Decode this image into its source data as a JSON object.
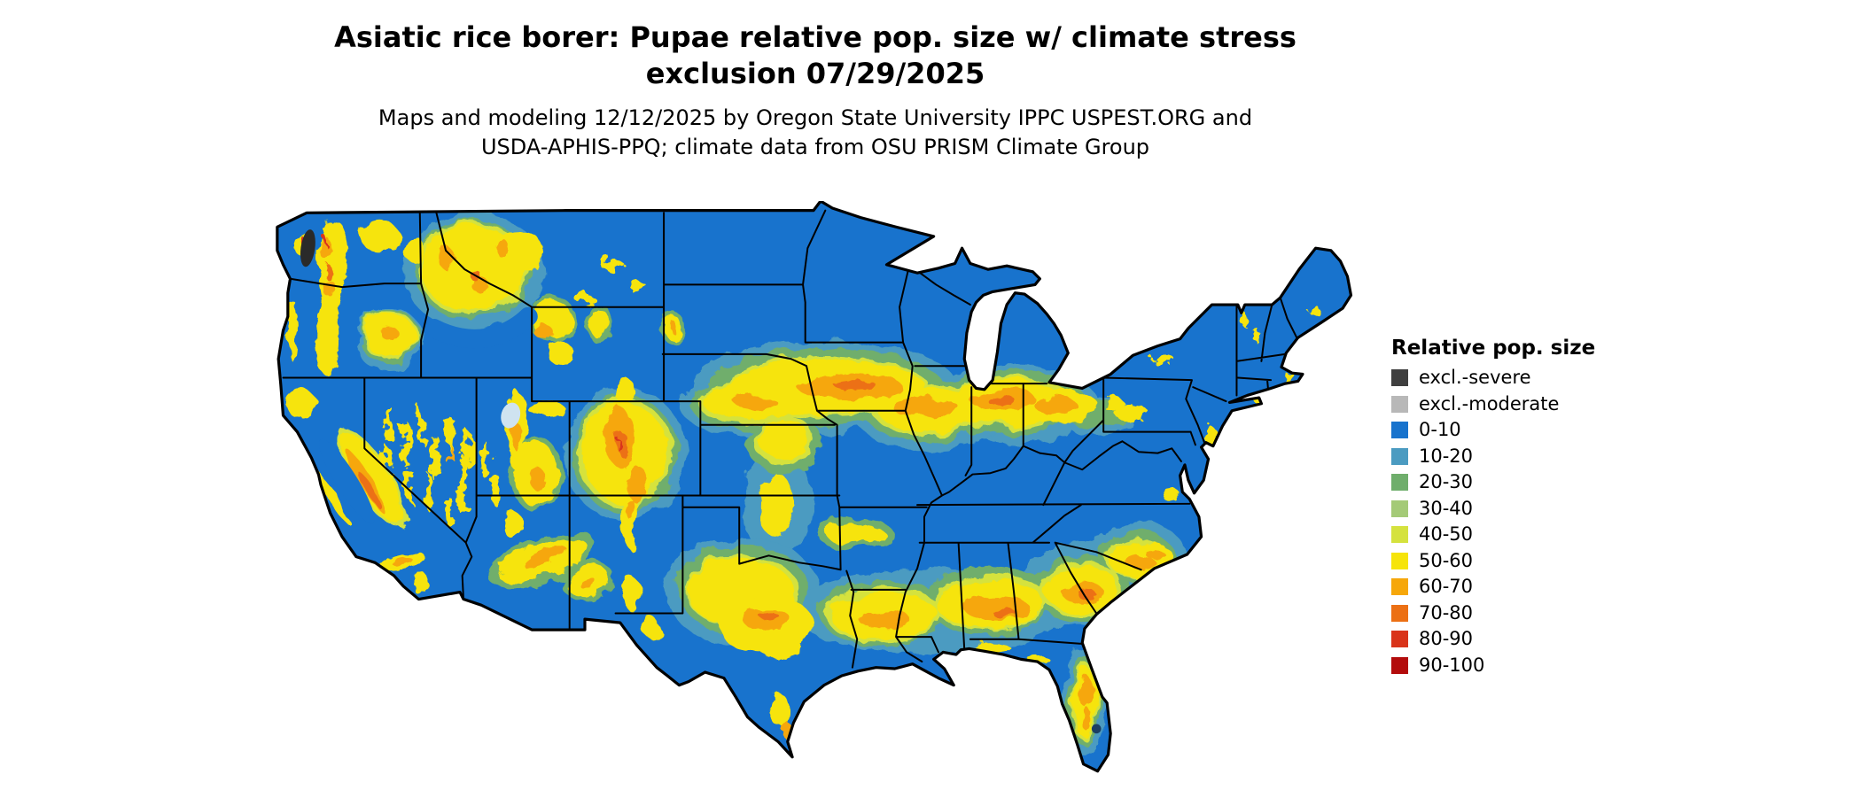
{
  "title": {
    "line1": "Asiatic rice borer: Pupae relative pop. size w/ climate stress",
    "line2": "exclusion 07/29/2025"
  },
  "subtitle": {
    "line1": "Maps and modeling 12/12/2025 by Oregon State University IPPC USPEST.ORG and",
    "line2": "USDA-APHIS-PPQ; climate data from OSU PRISM Climate Group"
  },
  "map": {
    "base_color": "#1873cd"
  },
  "legend": {
    "title": "Relative pop. size",
    "entries": [
      {
        "label": "excl.-severe",
        "color": "#3f3f3f"
      },
      {
        "label": "excl.-moderate",
        "color": "#b8b8b8"
      },
      {
        "label": "0-10",
        "color": "#1873cd"
      },
      {
        "label": "10-20",
        "color": "#4b9bc1"
      },
      {
        "label": "20-30",
        "color": "#6fae6c"
      },
      {
        "label": "30-40",
        "color": "#a4ca77"
      },
      {
        "label": "40-50",
        "color": "#d5e23e"
      },
      {
        "label": "50-60",
        "color": "#f6e40a"
      },
      {
        "label": "60-70",
        "color": "#f6a70a"
      },
      {
        "label": "70-80",
        "color": "#ec7014"
      },
      {
        "label": "80-90",
        "color": "#d9341a"
      },
      {
        "label": "90-100",
        "color": "#b30c0c"
      }
    ]
  }
}
